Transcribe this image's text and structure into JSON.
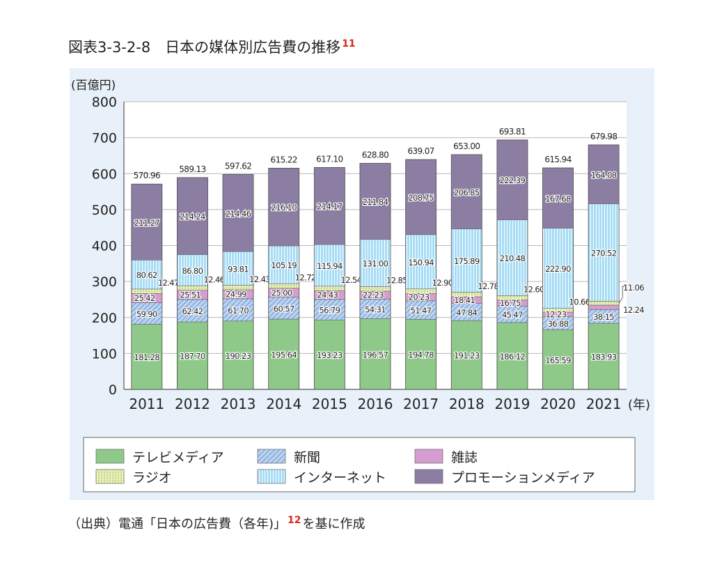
{
  "figure": {
    "title": "図表3-3-2-8　日本の媒体別広告費の推移",
    "title_note": "11",
    "source_prefix": "（出典）電通「日本の広告費（各年)」",
    "source_note": "12",
    "source_suffix": "を基に作成"
  },
  "chart_data": {
    "type": "bar",
    "stacked": true,
    "ylabel": "(百億円)",
    "xlabel": "(年)",
    "ylim": [
      0,
      800
    ],
    "yticks": [
      0,
      100,
      200,
      300,
      400,
      500,
      600,
      700,
      800
    ],
    "grid": true,
    "legend_position": "bottom",
    "categories": [
      "2011",
      "2012",
      "2013",
      "2014",
      "2015",
      "2016",
      "2017",
      "2018",
      "2019",
      "2020",
      "2021"
    ],
    "totals": [
      "570.96",
      "589.13",
      "597.62",
      "615.22",
      "617.10",
      "628.80",
      "639.07",
      "653.00",
      "693.81",
      "615.94",
      "679.98"
    ],
    "series": [
      {
        "name": "テレビメディア",
        "key": "tv",
        "color": "#8fc98a",
        "values": [
          181.28,
          187.7,
          190.23,
          195.64,
          193.23,
          196.57,
          194.78,
          191.23,
          186.12,
          165.59,
          183.93
        ],
        "labels": [
          "181.28",
          "187.70",
          "190.23",
          "195.64",
          "193.23",
          "196.57",
          "194.78",
          "191.23",
          "186.12",
          "165.59",
          "183.93"
        ]
      },
      {
        "name": "新聞",
        "key": "news",
        "color": "#a9c8ec",
        "values": [
          59.9,
          62.42,
          61.7,
          60.57,
          56.79,
          54.31,
          51.47,
          47.84,
          45.47,
          36.88,
          38.15
        ],
        "labels": [
          "59.90",
          "62.42",
          "61.70",
          "60.57",
          "56.79",
          "54.31",
          "51.47",
          "47.84",
          "45.47",
          "36.88",
          "38.15"
        ]
      },
      {
        "name": "雑誌",
        "key": "mag",
        "color": "#d69ed0",
        "values": [
          25.42,
          25.51,
          24.99,
          25.0,
          24.43,
          22.23,
          20.23,
          18.41,
          16.75,
          12.23,
          12.24
        ],
        "labels": [
          "25.42",
          "25.51",
          "24.99",
          "25.00",
          "24.43",
          "22.23",
          "20.23",
          "18.41",
          "16.75",
          "12.23",
          "12.24"
        ]
      },
      {
        "name": "ラジオ",
        "key": "radio",
        "color": "#dfe8a6",
        "values": [
          12.47,
          12.46,
          12.43,
          12.72,
          12.54,
          12.85,
          12.9,
          12.78,
          12.6,
          10.66,
          11.06
        ],
        "labels": [
          "12.47",
          "12.46",
          "12.43",
          "12.72",
          "12.54",
          "12.85",
          "12.90",
          "12.78",
          "12.60",
          "10.66",
          "11.06"
        ]
      },
      {
        "name": "インターネット",
        "key": "net",
        "color": "#a6dcf5",
        "values": [
          80.62,
          86.8,
          93.81,
          105.19,
          115.94,
          131.0,
          150.94,
          175.89,
          210.48,
          222.9,
          270.52
        ],
        "labels": [
          "80.62",
          "86.80",
          "93.81",
          "105.19",
          "115.94",
          "131.00",
          "150.94",
          "175.89",
          "210.48",
          "222.90",
          "270.52"
        ]
      },
      {
        "name": "プロモーションメディア",
        "key": "promo",
        "color": "#8c7ea3",
        "values": [
          211.27,
          214.24,
          214.46,
          216.1,
          214.17,
          211.84,
          208.75,
          206.85,
          222.39,
          167.68,
          164.08
        ],
        "labels": [
          "211.27",
          "214.24",
          "214.46",
          "216.10",
          "214.17",
          "211.84",
          "208.75",
          "206.85",
          "222.39",
          "167.68",
          "164.08"
        ]
      }
    ],
    "legend_order": [
      "tv",
      "news",
      "mag",
      "radio",
      "net",
      "promo"
    ]
  }
}
